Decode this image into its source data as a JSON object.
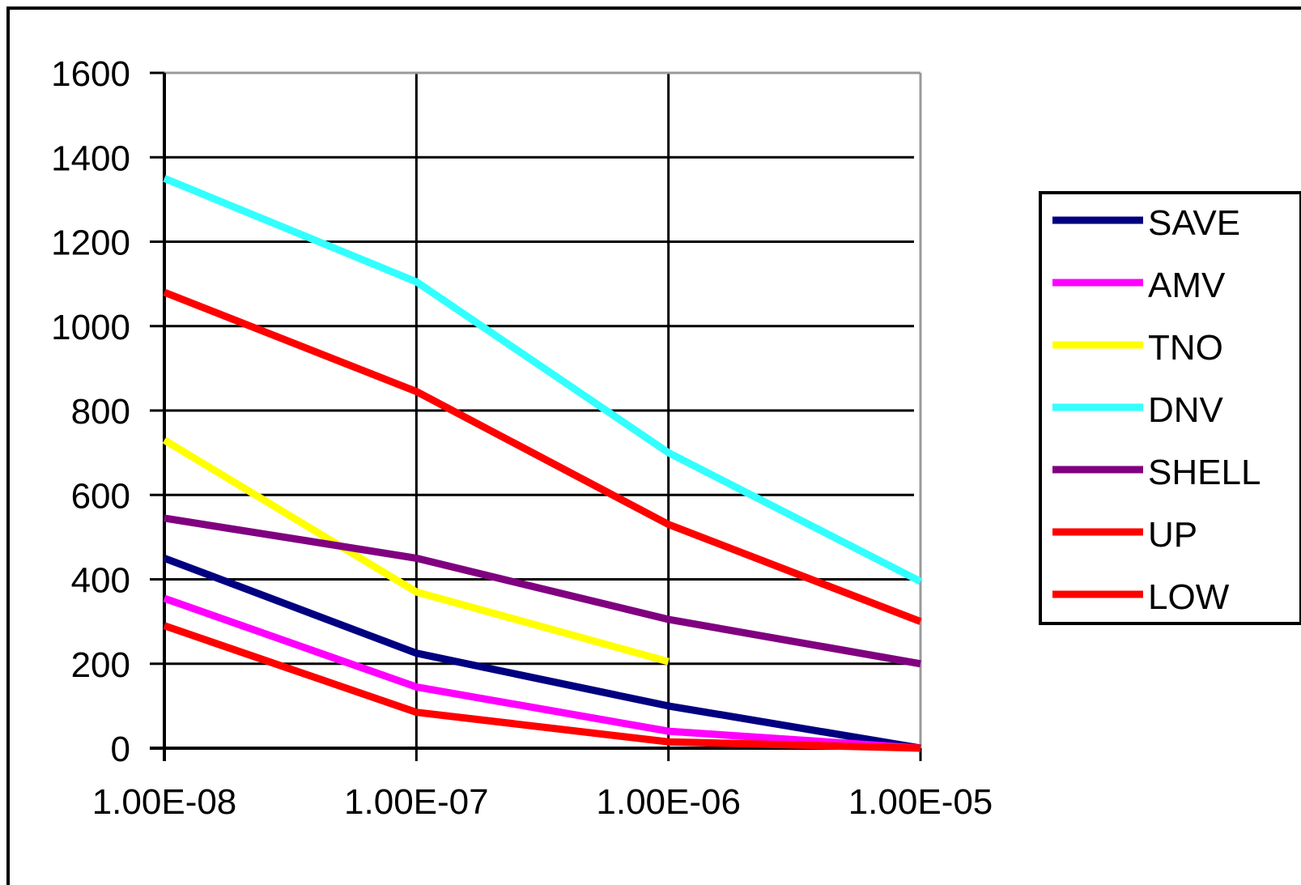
{
  "chart_data": {
    "type": "line",
    "title": "",
    "xlabel": "",
    "ylabel": "",
    "x_scale": "log",
    "x": [
      1e-08,
      1e-07,
      1e-06,
      1e-05
    ],
    "x_tick_labels": [
      "1.00E-08",
      "1.00E-07",
      "1.00E-06",
      "1.00E-05"
    ],
    "y_ticks": [
      0,
      200,
      400,
      600,
      800,
      1000,
      1200,
      1400,
      1600
    ],
    "y_tick_labels": [
      "0",
      "200",
      "400",
      "600",
      "800",
      "1000",
      "1200",
      "1400",
      "1600"
    ],
    "ylim": [
      0,
      1600
    ],
    "grid": true,
    "legend_position": "right",
    "series": [
      {
        "name": "SAVE",
        "color": "#000080",
        "values": [
          450,
          225,
          100,
          0
        ]
      },
      {
        "name": "AMV",
        "color": "#ff00ff",
        "values": [
          355,
          145,
          40,
          0
        ]
      },
      {
        "name": "TNO",
        "color": "#ffff00",
        "values": [
          730,
          370,
          205,
          null
        ]
      },
      {
        "name": "DNV",
        "color": "#33ffff",
        "values": [
          1350,
          1105,
          700,
          395
        ]
      },
      {
        "name": "SHELL",
        "color": "#800080",
        "values": [
          545,
          450,
          305,
          200
        ]
      },
      {
        "name": "UP",
        "color": "#ff0000",
        "values": [
          1080,
          845,
          530,
          300
        ]
      },
      {
        "name": "LOW",
        "color": "#ff0000",
        "values": [
          290,
          85,
          15,
          0
        ]
      }
    ]
  }
}
